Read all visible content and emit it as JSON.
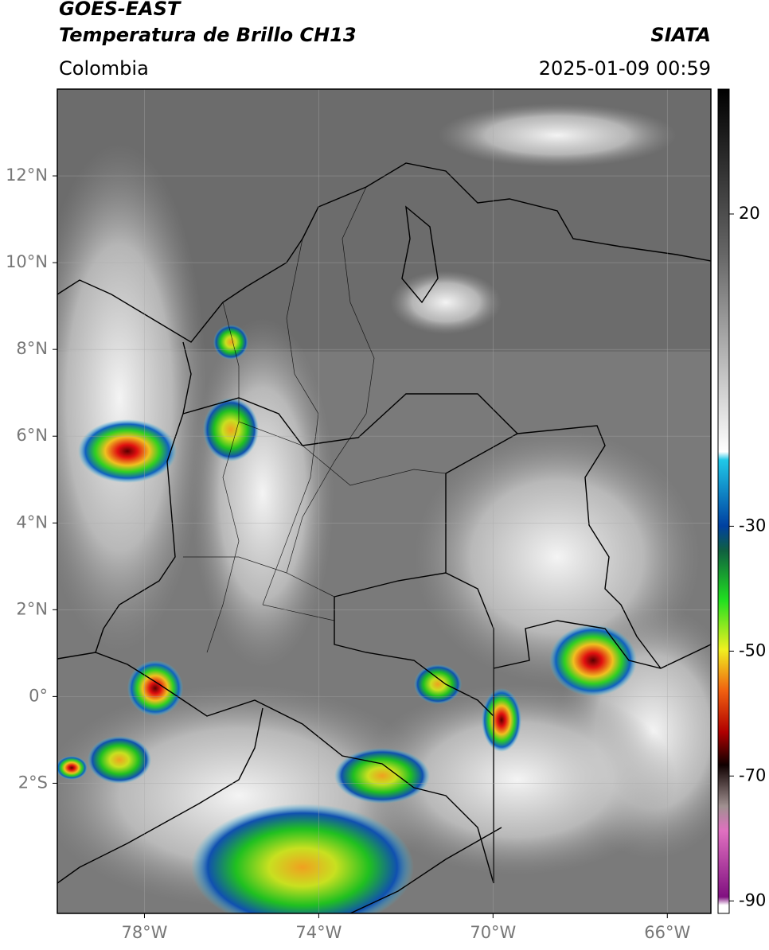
{
  "header": {
    "satellite": "GOES-EAST",
    "product": "Temperatura de Brillo CH13",
    "agency": "SIATA",
    "region": "Colombia",
    "datetime": "2025-01-09 00:59"
  },
  "map": {
    "lonlim": [
      -80,
      -65
    ],
    "latlim": [
      -5,
      14
    ],
    "lonticks": [
      {
        "value": -78,
        "label": "78°W"
      },
      {
        "value": -74,
        "label": "74°W"
      },
      {
        "value": -70,
        "label": "70°W"
      },
      {
        "value": -66,
        "label": "66°W"
      }
    ],
    "latticks": [
      {
        "value": 12,
        "label": "12°N"
      },
      {
        "value": 10,
        "label": "10°N"
      },
      {
        "value": 8,
        "label": "8°N"
      },
      {
        "value": 6,
        "label": "6°N"
      },
      {
        "value": 4,
        "label": "4°N"
      },
      {
        "value": 2,
        "label": "2°N"
      },
      {
        "value": 0,
        "label": "0°"
      },
      {
        "value": -2,
        "label": "2°S"
      }
    ],
    "grid": true
  },
  "colorbar": {
    "lim": [
      -92,
      40
    ],
    "ticks": [
      20,
      -30,
      -50,
      -70,
      -90
    ]
  }
}
